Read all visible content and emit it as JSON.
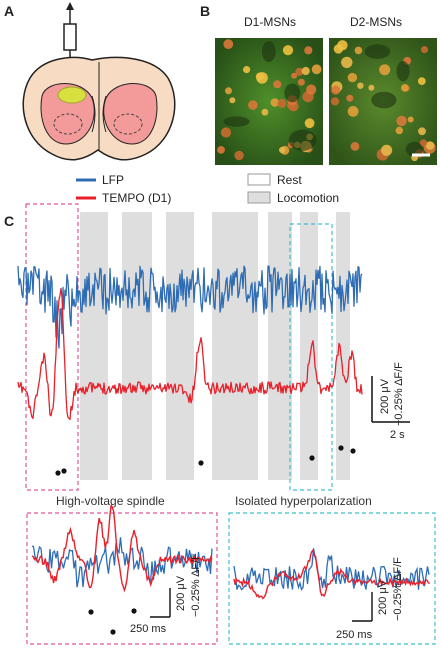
{
  "panels": {
    "a": "A",
    "b": "B",
    "c": "C"
  },
  "micrographs": {
    "left": "D1-MSNs",
    "right": "D2-MSNs"
  },
  "legend": {
    "lfp": "LFP",
    "tempo": "TEMPO (D1)",
    "rest": "Rest",
    "locomotion": "Locomotion"
  },
  "colors": {
    "lfp": "#2e6db4",
    "tempo": "#e8202a",
    "locomotion": "#dedede",
    "box_left": "#e0569a",
    "box_right": "#3fbfd0"
  },
  "scale_main": {
    "y_top": "200 μV",
    "y_bottom": "−0.25% ΔF/F",
    "x": "2 s"
  },
  "inset_left": {
    "title": "High-voltage spindle",
    "y_top": "200 μV",
    "y_bottom": "−0.25% ΔF/F",
    "x": "250 ms"
  },
  "inset_right": {
    "title": "Isolated hyperpolarization",
    "y_top": "200 μV",
    "y_bottom": "−0.25% ΔF/F",
    "x": "250 ms"
  }
}
